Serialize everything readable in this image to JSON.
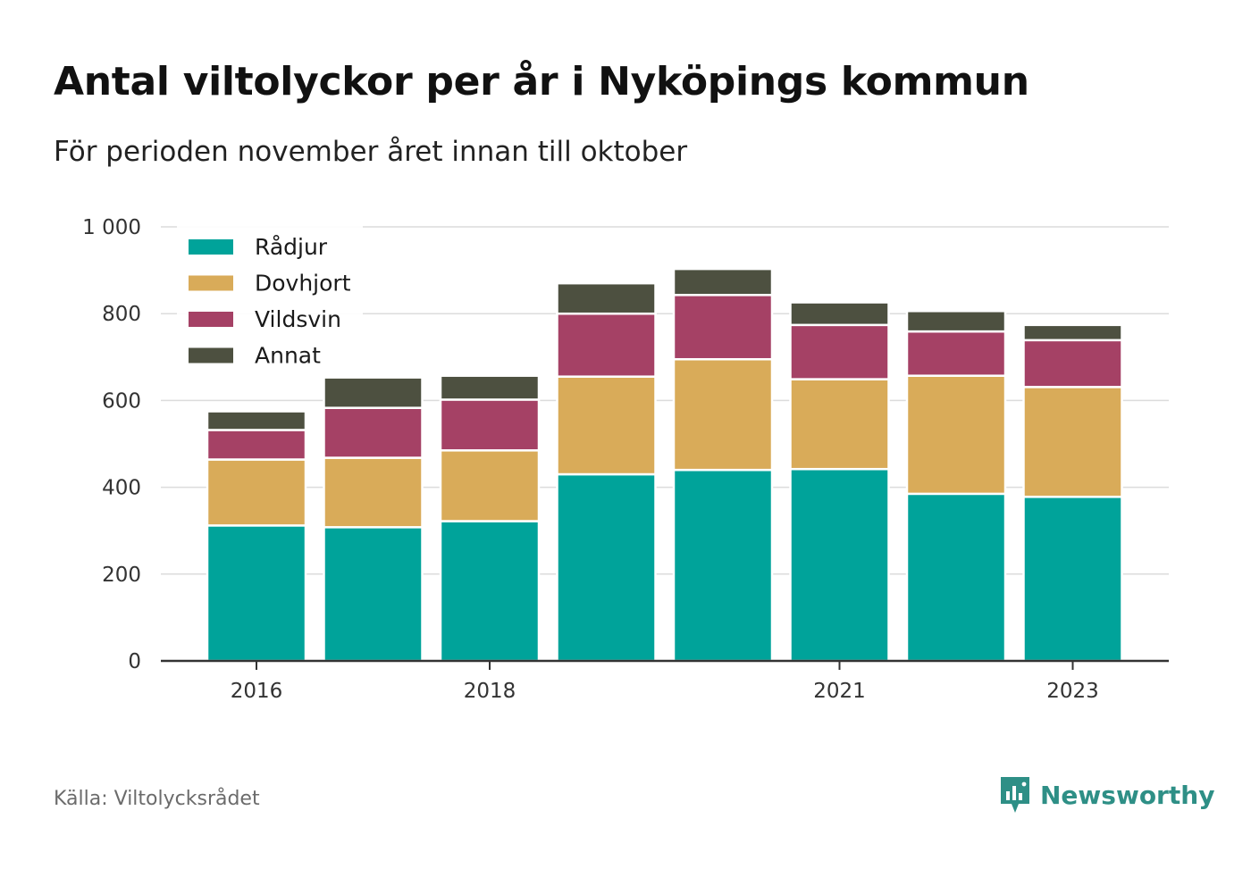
{
  "title": "Antal viltolyckor per år i Nyköpings kommun",
  "subtitle": "För perioden november året innan till oktober",
  "source": "Källa: Viltolycksrådet",
  "brand": {
    "name": "Newsworthy",
    "icon": "newsworthy-logo-icon",
    "color": "#2e8f86"
  },
  "chart_data": {
    "type": "bar",
    "stacked": true,
    "categories": [
      "2016",
      "2017",
      "2018",
      "2019",
      "2020",
      "2021",
      "2022",
      "2023"
    ],
    "x_tick_labels": [
      "2016",
      "",
      "2018",
      "",
      "",
      "2021",
      "",
      "2023"
    ],
    "y_ticks": [
      {
        "value": 0,
        "label": "0"
      },
      {
        "value": 200,
        "label": "200"
      },
      {
        "value": 400,
        "label": "400"
      },
      {
        "value": 600,
        "label": "600"
      },
      {
        "value": 800,
        "label": "800"
      },
      {
        "value": 1000,
        "label": "1 000"
      }
    ],
    "ylim": [
      0,
      1000
    ],
    "grid": true,
    "legend_position": "top-left",
    "series": [
      {
        "name": "Rådjur",
        "color": "#00a39a",
        "values": [
          312,
          308,
          322,
          430,
          440,
          442,
          385,
          378
        ]
      },
      {
        "name": "Dovhjort",
        "color": "#d9ab59",
        "values": [
          152,
          160,
          163,
          225,
          255,
          207,
          272,
          253
        ]
      },
      {
        "name": "Vildsvin",
        "color": "#a54165",
        "values": [
          68,
          115,
          117,
          145,
          148,
          125,
          102,
          108
        ]
      },
      {
        "name": "Annat",
        "color": "#4d5040",
        "values": [
          43,
          70,
          55,
          70,
          60,
          52,
          47,
          35
        ]
      }
    ]
  }
}
